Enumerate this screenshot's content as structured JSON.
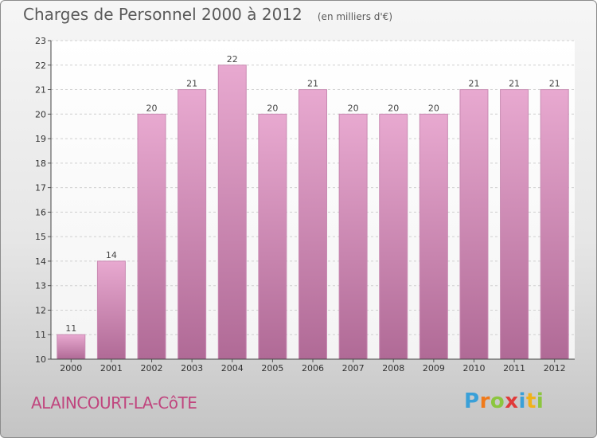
{
  "header": {
    "title": "Charges de Personnel 2000 à 2012",
    "subtitle": "(en milliers d'€)"
  },
  "footer": {
    "commune": "ALAINCOURT-LA-CôTE",
    "logo_letters": [
      "P",
      "r",
      "o",
      "x",
      "i",
      "t",
      "i"
    ],
    "logo_colors": [
      "#3aa0d8",
      "#f07a1a",
      "#8cc63f",
      "#e03a3a",
      "#3aa0d8",
      "#f0b21a",
      "#8cc63f"
    ]
  },
  "chart_data": {
    "type": "bar",
    "title": "Charges de Personnel 2000 à 2012",
    "subtitle": "(en milliers d'€)",
    "categories": [
      "2000",
      "2001",
      "2002",
      "2003",
      "2004",
      "2005",
      "2006",
      "2007",
      "2008",
      "2009",
      "2010",
      "2011",
      "2012"
    ],
    "values": [
      11,
      14,
      20,
      21,
      22,
      20,
      21,
      20,
      20,
      20,
      21,
      21,
      21
    ],
    "ylim": [
      10,
      23
    ],
    "yticks": [
      10,
      11,
      12,
      13,
      14,
      15,
      16,
      17,
      18,
      19,
      20,
      21,
      22,
      23
    ],
    "grid": true,
    "bar_color_top": "#e8a9d0",
    "bar_color_bottom": "#b06a96"
  }
}
